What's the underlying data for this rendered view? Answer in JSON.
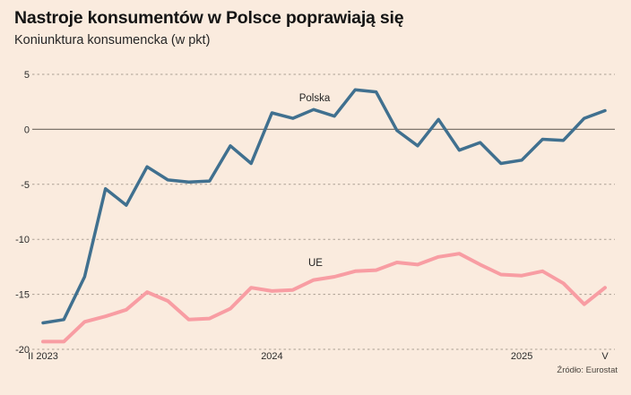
{
  "header": {
    "title": "Nastroje konsumentów w Polsce poprawiają się",
    "subtitle": "Koniunktura konsumencka (w pkt)"
  },
  "source": "Źródło: Eurostat",
  "colors": {
    "background": "#faebde",
    "polska_line": "#40708f",
    "ue_line": "#f89da3",
    "gridline": "#ab9f93",
    "zero_line": "#7d756b",
    "axis_text": "#2b2b2b",
    "series_label": "#1f1f1f",
    "title_text": "#141414",
    "source_text": "#4a443e"
  },
  "chart_data": {
    "type": "line",
    "title": "Nastroje konsumentów w Polsce poprawiają się",
    "subtitle": "Koniunktura konsumencka (w pkt)",
    "xlabel": "",
    "ylabel": "pkt",
    "x_period": "monthly, II 2023 – V 2025 (28 points)",
    "ylim": [
      -20,
      5
    ],
    "yticks": [
      5,
      0,
      -5,
      -10,
      -15,
      -20
    ],
    "grid": "dashed horizontal, solid line at 0",
    "legend_position": "inline labels near lines",
    "xticks": [
      {
        "label": "II 2023",
        "index": 0
      },
      {
        "label": "2024",
        "index": 11
      },
      {
        "label": "2025",
        "index": 23
      },
      {
        "label": "V",
        "index": 27
      }
    ],
    "series": [
      {
        "name": "Polska",
        "color": "#40708f",
        "values": [
          -17.6,
          -17.3,
          -13.4,
          -5.4,
          -6.9,
          -3.4,
          -4.6,
          -4.8,
          -4.7,
          -1.5,
          -3.1,
          1.5,
          1.0,
          1.8,
          1.2,
          3.6,
          3.4,
          -0.1,
          -1.5,
          0.9,
          -1.9,
          -1.2,
          -3.1,
          -2.8,
          -0.9,
          -1.0,
          1.0,
          1.7
        ]
      },
      {
        "name": "UE",
        "color": "#f89da3",
        "values": [
          -19.3,
          -19.3,
          -17.5,
          -17.0,
          -16.4,
          -14.8,
          -15.6,
          -17.3,
          -17.2,
          -16.3,
          -14.4,
          -14.7,
          -14.6,
          -13.7,
          -13.4,
          -12.9,
          -12.8,
          -12.1,
          -12.3,
          -11.6,
          -11.3,
          -12.3,
          -13.2,
          -13.3,
          -12.9,
          -14.0,
          -15.9,
          -14.4
        ]
      }
    ]
  }
}
